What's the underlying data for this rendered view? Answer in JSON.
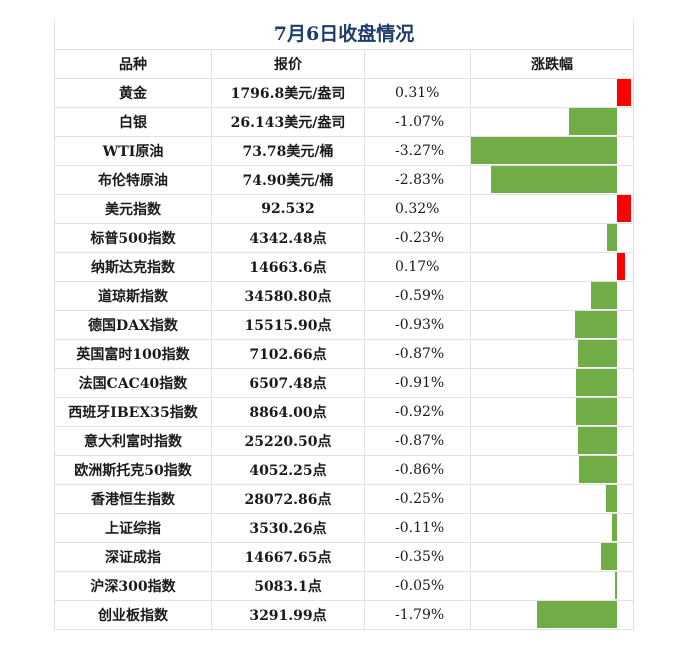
{
  "title": "7月6日收盘情况",
  "headers": {
    "name": "品种",
    "price": "报价",
    "change": "涨跌幅"
  },
  "colors": {
    "up": "#ff0000",
    "down": "#70ad47",
    "title": "#1f3d6b",
    "grid": "#e2e2e2"
  },
  "chart_data": {
    "type": "bar",
    "title": "7月6日收盘情况",
    "xlabel": "",
    "ylabel": "涨跌幅",
    "categories": [
      "黄金",
      "白银",
      "WTI原油",
      "布伦特原油",
      "美元指数",
      "标普500指数",
      "纳斯达克指数",
      "道琼斯指数",
      "德国DAX指数",
      "英国富时100指数",
      "法国CAC40指数",
      "西班牙IBEX35指数",
      "意大利富时指数",
      "欧洲斯托克50指数",
      "香港恒生指数",
      "上证综指",
      "深证成指",
      "沪深300指数",
      "创业板指数"
    ],
    "prices": [
      "1796.8美元/盎司",
      "26.143美元/盎司",
      "73.78美元/桶",
      "74.90美元/桶",
      "92.532",
      "4342.48点",
      "14663.6点",
      "34580.80点",
      "15515.90点",
      "7102.66点",
      "6507.48点",
      "8864.00点",
      "25220.50点",
      "4052.25点",
      "28072.86点",
      "3530.26点",
      "14667.65点",
      "5083.1点",
      "3291.99点"
    ],
    "values": [
      0.31,
      -1.07,
      -3.27,
      -2.83,
      0.32,
      -0.23,
      0.17,
      -0.59,
      -0.93,
      -0.87,
      -0.91,
      -0.92,
      -0.87,
      -0.86,
      -0.25,
      -0.11,
      -0.35,
      -0.05,
      -1.79
    ],
    "value_labels": [
      "0.31%",
      "-1.07%",
      "-3.27%",
      "-2.83%",
      "0.32%",
      "-0.23%",
      "0.17%",
      "-0.59%",
      "-0.93%",
      "-0.87%",
      "-0.91%",
      "-0.92%",
      "-0.87%",
      "-0.86%",
      "-0.25%",
      "-0.11%",
      "-0.35%",
      "-0.05%",
      "-1.79%"
    ],
    "orientation": "horizontal",
    "grid": false,
    "legend": "none"
  }
}
